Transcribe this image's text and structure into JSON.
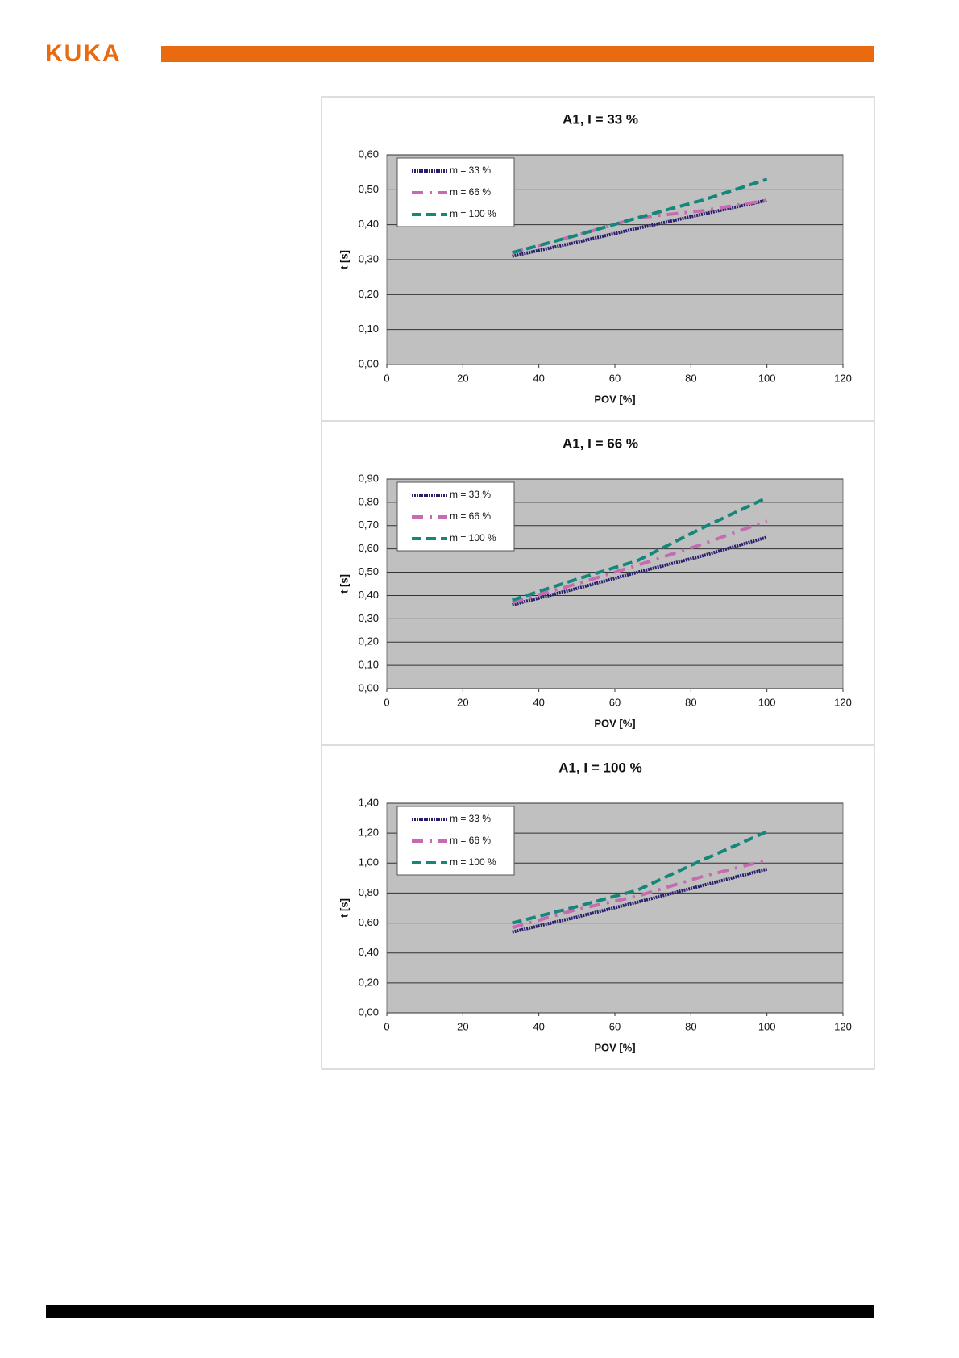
{
  "header": {
    "logo": "KUKA"
  },
  "chart_data": [
    {
      "type": "line",
      "title": "A1, I = 33 %",
      "xlabel": "POV [%]",
      "ylabel": "t [s]",
      "x": [
        33,
        50,
        66,
        83,
        100
      ],
      "xlim": [
        0,
        120
      ],
      "xticks": [
        0,
        20,
        40,
        60,
        80,
        100,
        120
      ],
      "ylim": [
        0,
        0.6
      ],
      "yticks": [
        {
          "value": 0,
          "label": "0,00"
        },
        {
          "value": 0.1,
          "label": "0,10"
        },
        {
          "value": 0.2,
          "label": "0,20"
        },
        {
          "value": 0.3,
          "label": "0,30"
        },
        {
          "value": 0.4,
          "label": "0,40"
        },
        {
          "value": 0.5,
          "label": "0,50"
        },
        {
          "value": 0.6,
          "label": "0,60"
        }
      ],
      "grid": true,
      "legend": "upper left",
      "series": [
        {
          "name": "m = 33 %",
          "color": "#2a1f6e",
          "values": [
            0.31,
            0.35,
            0.39,
            0.43,
            0.47
          ]
        },
        {
          "name": "m = 66 %",
          "color": "#c66bb0",
          "values": [
            0.32,
            0.37,
            0.42,
            0.44,
            0.47
          ]
        },
        {
          "name": "m = 100 %",
          "color": "#14877a",
          "values": [
            0.32,
            0.37,
            0.42,
            0.47,
            0.53
          ]
        }
      ]
    },
    {
      "type": "line",
      "title": "A1, I = 66 %",
      "xlabel": "POV [%]",
      "ylabel": "t [s]",
      "x": [
        33,
        50,
        66,
        83,
        100
      ],
      "xlim": [
        0,
        120
      ],
      "xticks": [
        0,
        20,
        40,
        60,
        80,
        100,
        120
      ],
      "ylim": [
        0,
        0.9
      ],
      "yticks": [
        {
          "value": 0,
          "label": "0,00"
        },
        {
          "value": 0.1,
          "label": "0,10"
        },
        {
          "value": 0.2,
          "label": "0,20"
        },
        {
          "value": 0.3,
          "label": "0,30"
        },
        {
          "value": 0.4,
          "label": "0,40"
        },
        {
          "value": 0.5,
          "label": "0,50"
        },
        {
          "value": 0.6,
          "label": "0,60"
        },
        {
          "value": 0.7,
          "label": "0,70"
        },
        {
          "value": 0.8,
          "label": "0,80"
        },
        {
          "value": 0.9,
          "label": "0,90"
        }
      ],
      "grid": true,
      "legend": "upper left",
      "series": [
        {
          "name": "m = 33 %",
          "color": "#2a1f6e",
          "values": [
            0.36,
            0.43,
            0.5,
            0.57,
            0.65
          ]
        },
        {
          "name": "m = 66 %",
          "color": "#c66bb0",
          "values": [
            0.37,
            0.45,
            0.53,
            0.62,
            0.72
          ]
        },
        {
          "name": "m = 100 %",
          "color": "#14877a",
          "values": [
            0.38,
            0.47,
            0.55,
            0.69,
            0.82
          ]
        }
      ]
    },
    {
      "type": "line",
      "title": "A1, I = 100 %",
      "xlabel": "POV [%]",
      "ylabel": "t [s]",
      "x": [
        33,
        50,
        66,
        83,
        100
      ],
      "xlim": [
        0,
        120
      ],
      "xticks": [
        0,
        20,
        40,
        60,
        80,
        100,
        120
      ],
      "ylim": [
        0,
        1.4
      ],
      "yticks": [
        {
          "value": 0,
          "label": "0,00"
        },
        {
          "value": 0.2,
          "label": "0,20"
        },
        {
          "value": 0.4,
          "label": "0,40"
        },
        {
          "value": 0.6,
          "label": "0,60"
        },
        {
          "value": 0.8,
          "label": "0,80"
        },
        {
          "value": 1.0,
          "label": "1,00"
        },
        {
          "value": 1.2,
          "label": "1,20"
        },
        {
          "value": 1.4,
          "label": "1,40"
        }
      ],
      "grid": true,
      "legend": "upper left",
      "series": [
        {
          "name": "m = 33 %",
          "color": "#2a1f6e",
          "values": [
            0.54,
            0.64,
            0.74,
            0.85,
            0.96
          ]
        },
        {
          "name": "m = 66 %",
          "color": "#c66bb0",
          "values": [
            0.57,
            0.69,
            0.78,
            0.91,
            1.02
          ]
        },
        {
          "name": "m = 100 %",
          "color": "#14877a",
          "values": [
            0.6,
            0.71,
            0.82,
            1.02,
            1.21
          ]
        }
      ]
    }
  ]
}
